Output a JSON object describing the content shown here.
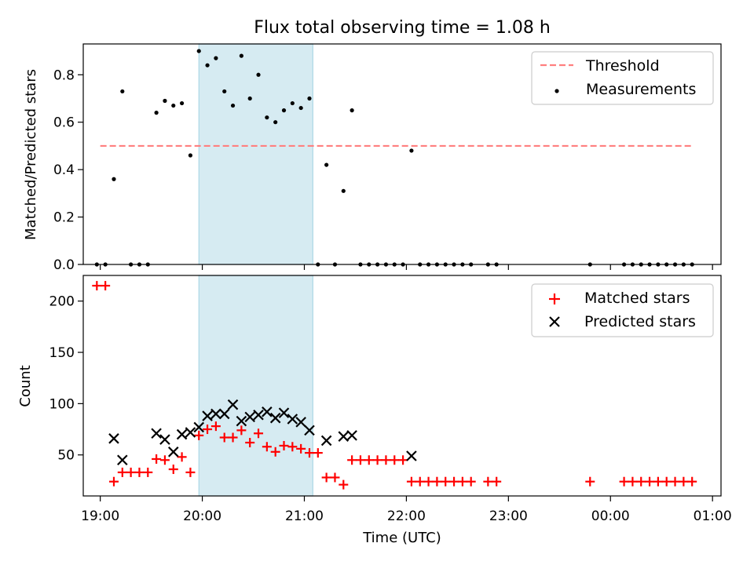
{
  "chart_data": [
    {
      "type": "scatter",
      "title": "Flux total observing time = 1.08 h",
      "xlabel": "",
      "ylabel": "Matched/Predicted stars",
      "xlim": [
        "18:50",
        "01:05"
      ],
      "ylim": [
        0,
        0.93
      ],
      "yticks": [
        "0.0",
        "0.2",
        "0.4",
        "0.6",
        "0.8"
      ],
      "grid": false,
      "legend_position": "top-right",
      "highlight_span": {
        "from": "19:58",
        "to": "21:05",
        "color": "#add8e6"
      },
      "threshold": {
        "name": "Threshold",
        "value": 0.5,
        "from": "19:00",
        "to": "00:48",
        "color": "#ff7f7f",
        "style": "dashed"
      },
      "series": [
        {
          "name": "Measurements",
          "marker": "dot",
          "color": "#000000",
          "points": [
            [
              "18:58",
              0.0
            ],
            [
              "19:03",
              0.0
            ],
            [
              "19:08",
              0.36
            ],
            [
              "19:13",
              0.73
            ],
            [
              "19:18",
              0.0
            ],
            [
              "19:23",
              0.0
            ],
            [
              "19:28",
              0.0
            ],
            [
              "19:33",
              0.64
            ],
            [
              "19:38",
              0.69
            ],
            [
              "19:43",
              0.67
            ],
            [
              "19:48",
              0.68
            ],
            [
              "19:53",
              0.46
            ],
            [
              "19:58",
              0.9
            ],
            [
              "20:03",
              0.84
            ],
            [
              "20:08",
              0.87
            ],
            [
              "20:13",
              0.73
            ],
            [
              "20:18",
              0.67
            ],
            [
              "20:23",
              0.88
            ],
            [
              "20:28",
              0.7
            ],
            [
              "20:33",
              0.8
            ],
            [
              "20:38",
              0.62
            ],
            [
              "20:43",
              0.6
            ],
            [
              "20:48",
              0.65
            ],
            [
              "20:53",
              0.68
            ],
            [
              "20:58",
              0.66
            ],
            [
              "21:03",
              0.7
            ],
            [
              "21:08",
              0.0
            ],
            [
              "21:13",
              0.42
            ],
            [
              "21:18",
              0.0
            ],
            [
              "21:23",
              0.31
            ],
            [
              "21:28",
              0.65
            ],
            [
              "21:33",
              0.0
            ],
            [
              "21:38",
              0.0
            ],
            [
              "21:43",
              0.0
            ],
            [
              "21:48",
              0.0
            ],
            [
              "21:53",
              0.0
            ],
            [
              "21:58",
              0.0
            ],
            [
              "22:03",
              0.48
            ],
            [
              "22:08",
              0.0
            ],
            [
              "22:13",
              0.0
            ],
            [
              "22:18",
              0.0
            ],
            [
              "22:23",
              0.0
            ],
            [
              "22:28",
              0.0
            ],
            [
              "22:33",
              0.0
            ],
            [
              "22:38",
              0.0
            ],
            [
              "22:48",
              0.0
            ],
            [
              "22:53",
              0.0
            ],
            [
              "23:48",
              0.0
            ],
            [
              "00:08",
              0.0
            ],
            [
              "00:13",
              0.0
            ],
            [
              "00:18",
              0.0
            ],
            [
              "00:23",
              0.0
            ],
            [
              "00:28",
              0.0
            ],
            [
              "00:33",
              0.0
            ],
            [
              "00:38",
              0.0
            ],
            [
              "00:43",
              0.0
            ],
            [
              "00:48",
              0.0
            ]
          ]
        }
      ]
    },
    {
      "type": "scatter",
      "title": "",
      "xlabel": "Time (UTC)",
      "ylabel": "Count",
      "xlim": [
        "18:50",
        "01:05"
      ],
      "ylim": [
        10,
        225
      ],
      "yticks": [
        "50",
        "100",
        "150",
        "200"
      ],
      "xticks": [
        "19:00",
        "20:00",
        "21:00",
        "22:00",
        "23:00",
        "00:00",
        "01:00"
      ],
      "grid": false,
      "legend_position": "top-right",
      "highlight_span": {
        "from": "19:58",
        "to": "21:05",
        "color": "#add8e6"
      },
      "series": [
        {
          "name": "Matched stars",
          "marker": "plus",
          "color": "#ff0000",
          "points": [
            [
              "18:58",
              215
            ],
            [
              "19:03",
              215
            ],
            [
              "19:08",
              24
            ],
            [
              "19:13",
              33
            ],
            [
              "19:18",
              33
            ],
            [
              "19:23",
              33
            ],
            [
              "19:28",
              33
            ],
            [
              "19:33",
              46
            ],
            [
              "19:38",
              45
            ],
            [
              "19:43",
              36
            ],
            [
              "19:48",
              48
            ],
            [
              "19:53",
              33
            ],
            [
              "19:58",
              69
            ],
            [
              "20:03",
              75
            ],
            [
              "20:08",
              78
            ],
            [
              "20:13",
              67
            ],
            [
              "20:18",
              67
            ],
            [
              "20:23",
              74
            ],
            [
              "20:28",
              62
            ],
            [
              "20:33",
              71
            ],
            [
              "20:38",
              58
            ],
            [
              "20:43",
              53
            ],
            [
              "20:48",
              59
            ],
            [
              "20:53",
              58
            ],
            [
              "20:58",
              56
            ],
            [
              "21:03",
              52
            ],
            [
              "21:08",
              52
            ],
            [
              "21:13",
              28
            ],
            [
              "21:18",
              28
            ],
            [
              "21:23",
              21
            ],
            [
              "21:28",
              45
            ],
            [
              "21:33",
              45
            ],
            [
              "21:38",
              45
            ],
            [
              "21:43",
              45
            ],
            [
              "21:48",
              45
            ],
            [
              "21:53",
              45
            ],
            [
              "21:58",
              45
            ],
            [
              "22:03",
              24
            ],
            [
              "22:08",
              24
            ],
            [
              "22:13",
              24
            ],
            [
              "22:18",
              24
            ],
            [
              "22:23",
              24
            ],
            [
              "22:28",
              24
            ],
            [
              "22:33",
              24
            ],
            [
              "22:38",
              24
            ],
            [
              "22:48",
              24
            ],
            [
              "22:53",
              24
            ],
            [
              "23:48",
              24
            ],
            [
              "00:08",
              24
            ],
            [
              "00:13",
              24
            ],
            [
              "00:18",
              24
            ],
            [
              "00:23",
              24
            ],
            [
              "00:28",
              24
            ],
            [
              "00:33",
              24
            ],
            [
              "00:38",
              24
            ],
            [
              "00:43",
              24
            ],
            [
              "00:48",
              24
            ]
          ]
        },
        {
          "name": "Predicted stars",
          "marker": "x",
          "color": "#000000",
          "points": [
            [
              "19:08",
              66
            ],
            [
              "19:13",
              45
            ],
            [
              "19:33",
              71
            ],
            [
              "19:38",
              65
            ],
            [
              "19:43",
              53
            ],
            [
              "19:48",
              70
            ],
            [
              "19:53",
              72
            ],
            [
              "19:58",
              77
            ],
            [
              "20:03",
              88
            ],
            [
              "20:08",
              90
            ],
            [
              "20:13",
              90
            ],
            [
              "20:18",
              99
            ],
            [
              "20:23",
              83
            ],
            [
              "20:28",
              87
            ],
            [
              "20:33",
              89
            ],
            [
              "20:38",
              92
            ],
            [
              "20:43",
              86
            ],
            [
              "20:48",
              91
            ],
            [
              "20:53",
              85
            ],
            [
              "20:58",
              82
            ],
            [
              "21:03",
              74
            ],
            [
              "21:13",
              64
            ],
            [
              "21:23",
              68
            ],
            [
              "21:28",
              69
            ],
            [
              "22:03",
              49
            ]
          ]
        }
      ]
    }
  ]
}
